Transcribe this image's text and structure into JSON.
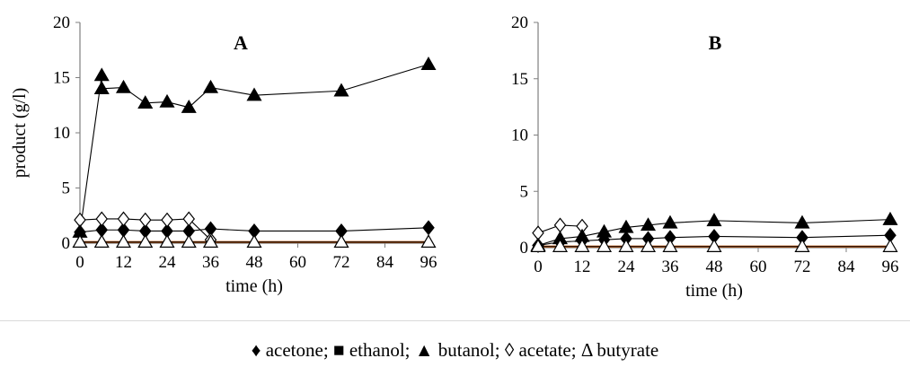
{
  "legend_text": "♦ acetone; ■ ethanol; ▲ butanol; ◊ acetate; Δ butyrate",
  "chart_data": [
    {
      "type": "line",
      "title": "A",
      "xlabel": "time (h)",
      "ylabel": "product (g/l)",
      "xlim": [
        0,
        96
      ],
      "ylim": [
        0,
        20
      ],
      "xticks": [
        0,
        12,
        24,
        36,
        48,
        60,
        72,
        84,
        96
      ],
      "yticks": [
        0,
        5,
        10,
        15,
        20
      ],
      "grid": false,
      "series": [
        {
          "name": "acetone",
          "marker": "diamond-filled",
          "line_color": "#000000",
          "x": [
            0,
            6,
            12,
            18,
            24,
            30,
            36,
            48,
            72,
            96
          ],
          "y": [
            1.0,
            1.2,
            1.2,
            1.1,
            1.1,
            1.1,
            1.3,
            1.1,
            1.1,
            1.4
          ]
        },
        {
          "name": "ethanol",
          "marker": "square-filled",
          "line_color": "#c55a11",
          "x": [
            0,
            6,
            12,
            18,
            24,
            30,
            36,
            48,
            72,
            96
          ],
          "y": [
            0.1,
            0.1,
            0.1,
            0.1,
            0.1,
            0.1,
            0.1,
            0.1,
            0.1,
            0.1
          ]
        },
        {
          "name": "butanol",
          "marker": "triangle-filled",
          "line_color": "#000000",
          "x": [
            0,
            6,
            6,
            12,
            18,
            24,
            30,
            36,
            48,
            72,
            96
          ],
          "y": [
            1.0,
            15.2,
            14.0,
            14.1,
            12.7,
            12.8,
            12.3,
            14.1,
            13.4,
            13.8,
            16.2
          ]
        },
        {
          "name": "acetate",
          "marker": "diamond-open",
          "line_color": "#000000",
          "x": [
            0,
            6,
            12,
            18,
            24,
            30,
            36
          ],
          "y": [
            2.1,
            2.2,
            2.2,
            2.1,
            2.1,
            2.2,
            0.3
          ]
        },
        {
          "name": "butyrate",
          "marker": "triangle-open",
          "line_color": "#000000",
          "x": [
            0,
            6,
            12,
            18,
            24,
            30,
            36,
            48,
            72,
            96
          ],
          "y": [
            0.1,
            0.1,
            0.1,
            0.1,
            0.1,
            0.1,
            0.1,
            0.1,
            0.1,
            0.1
          ]
        }
      ]
    },
    {
      "type": "line",
      "title": "B",
      "xlabel": "time (h)",
      "ylabel": "",
      "xlim": [
        0,
        96
      ],
      "ylim": [
        0,
        20
      ],
      "xticks": [
        0,
        12,
        24,
        36,
        48,
        60,
        72,
        84,
        96
      ],
      "yticks": [
        0,
        5,
        10,
        15,
        20
      ],
      "grid": false,
      "series": [
        {
          "name": "acetone",
          "marker": "diamond-filled",
          "line_color": "#000000",
          "x": [
            0,
            6,
            12,
            18,
            24,
            30,
            36,
            48,
            72,
            96
          ],
          "y": [
            0.2,
            0.5,
            0.6,
            0.7,
            0.8,
            0.8,
            0.9,
            1.0,
            0.9,
            1.1
          ]
        },
        {
          "name": "ethanol",
          "marker": "square-filled",
          "line_color": "#c55a11",
          "x": [
            0,
            6,
            12,
            18,
            24,
            30,
            36,
            48,
            72,
            96
          ],
          "y": [
            0.1,
            0.1,
            0.1,
            0.1,
            0.1,
            0.1,
            0.1,
            0.1,
            0.1,
            0.1
          ]
        },
        {
          "name": "butanol",
          "marker": "triangle-filled",
          "line_color": "#000000",
          "x": [
            0,
            6,
            12,
            18,
            24,
            30,
            36,
            48,
            72,
            96
          ],
          "y": [
            0.2,
            0.8,
            1.0,
            1.4,
            1.8,
            2.0,
            2.2,
            2.4,
            2.2,
            2.5
          ]
        },
        {
          "name": "acetate",
          "marker": "diamond-open",
          "line_color": "#000000",
          "x": [
            0,
            6,
            12
          ],
          "y": [
            1.3,
            2.0,
            1.9
          ]
        },
        {
          "name": "butyrate",
          "marker": "triangle-open",
          "line_color": "#000000",
          "x": [
            0,
            6,
            12,
            18,
            24,
            30,
            36,
            48,
            72,
            96
          ],
          "y": [
            0.1,
            0.1,
            0.1,
            0.1,
            0.1,
            0.1,
            0.1,
            0.1,
            0.1,
            0.1
          ]
        }
      ]
    }
  ]
}
